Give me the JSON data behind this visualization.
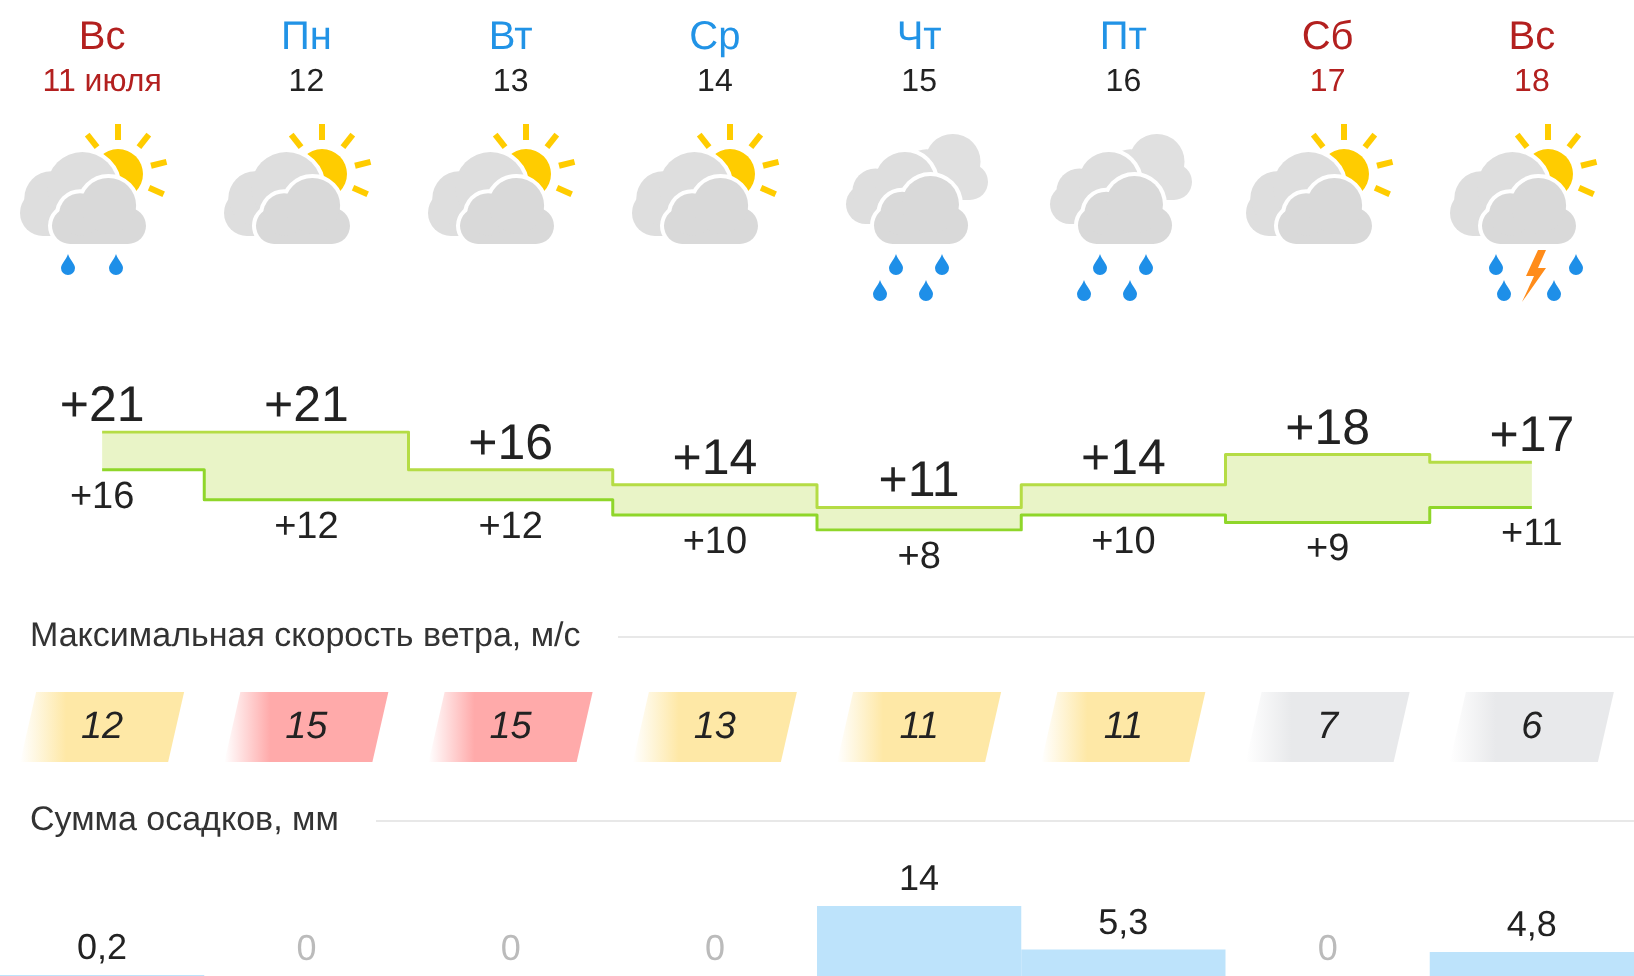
{
  "chart_data": [
    {
      "type": "step",
      "categories": [
        "Вс\n11 июля",
        "Пн\n12",
        "Вт\n13",
        "Ср\n14",
        "Чт\n15",
        "Пт\n16",
        "Сб\n17",
        "Вс\n18"
      ],
      "series": [
        {
          "color": "#b5dc45",
          "values": [
            21,
            21,
            16,
            14,
            11,
            14,
            18,
            17
          ],
          "value_labels": [
            "+21",
            "+21",
            "+16",
            "+14",
            "+11",
            "+14",
            "+18",
            "+17"
          ],
          "lower": [
            16,
            12,
            12,
            10,
            8,
            10,
            9,
            11
          ],
          "upper": [
            21,
            21,
            16,
            14,
            11,
            14,
            18,
            17
          ]
        },
        {
          "color": "#8fd62a",
          "values": [
            16,
            12,
            12,
            10,
            8,
            10,
            9,
            11
          ],
          "value_labels": [
            "+16",
            "+12",
            "+12",
            "+10",
            "+8",
            "+10",
            "+9",
            "+11"
          ]
        }
      ],
      "marker": "none",
      "tick_labels": "x"
    },
    {
      "type": "other",
      "title": "Максимальная скорость ветра, м/с",
      "values": [
        12,
        15,
        15,
        13,
        11,
        11,
        7,
        6
      ],
      "colors": [
        "#fee8a6",
        "#ffaaaa",
        "#ffaaaa",
        "#fee8a6",
        "#fee8a6",
        "#fee8a6",
        "#e8e9eb",
        "#e8e9eb"
      ],
      "data_labels": true
    },
    {
      "type": "bar",
      "title": "Сумма осадков, мм",
      "categories": [
        null,
        null,
        null,
        null,
        null,
        null,
        null,
        null
      ],
      "values": [
        0.2,
        0,
        0,
        0,
        14,
        5.3,
        0,
        4.8
      ],
      "color": "#bde3fb",
      "value_labels": [
        "0,2",
        "0",
        "0",
        "0",
        "14",
        "5,3",
        "0",
        "4,8"
      ],
      "tick_labels": "x"
    }
  ]
}
